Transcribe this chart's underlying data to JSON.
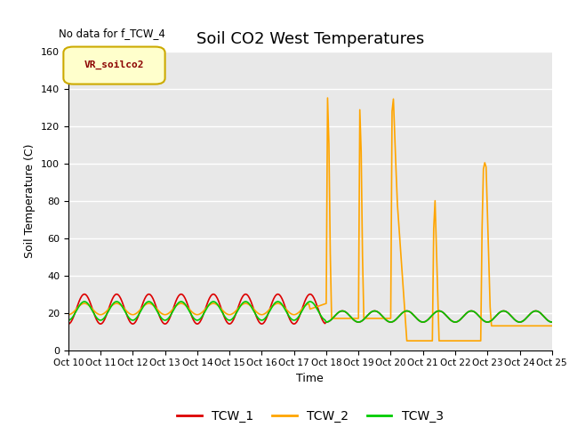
{
  "title": "Soil CO2 West Temperatures",
  "subtitle": "No data for f_TCW_4",
  "xlabel": "Time",
  "ylabel": "Soil Temperature (C)",
  "ylim": [
    0,
    160
  ],
  "yticks": [
    0,
    20,
    40,
    60,
    80,
    100,
    120,
    140,
    160
  ],
  "xtick_labels": [
    "Oct 10",
    "Oct 11",
    "Oct 12",
    "Oct 13",
    "Oct 14",
    "Oct 15",
    "Oct 16",
    "Oct 17",
    "Oct 18",
    "Oct 19",
    "Oct 20",
    "Oct 21",
    "Oct 22",
    "Oct 23",
    "Oct 24",
    "Oct 25"
  ],
  "legend_label": "VR_soilco2",
  "series_labels": [
    "TCW_1",
    "TCW_2",
    "TCW_3"
  ],
  "series_colors": [
    "#dd0000",
    "#ffa500",
    "#00cc00"
  ],
  "bg_color": "#e8e8e8",
  "title_fontsize": 13,
  "axis_fontsize": 9
}
